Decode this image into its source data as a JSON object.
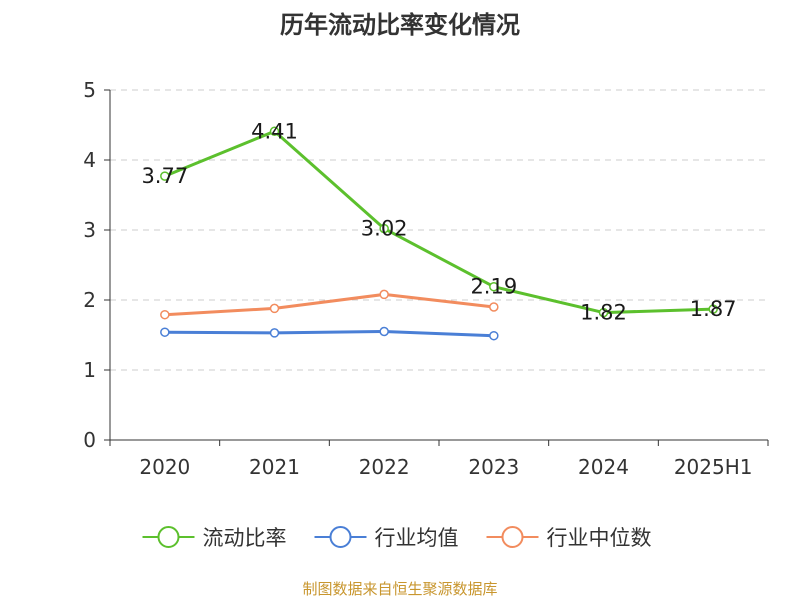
{
  "chart_data": {
    "type": "line",
    "title": "历年流动比率变化情况",
    "categories": [
      "2020",
      "2021",
      "2022",
      "2023",
      "2024",
      "2025H1"
    ],
    "ylim": [
      0,
      5
    ],
    "yticks": [
      "0",
      "1",
      "2",
      "3",
      "4",
      "5"
    ],
    "grid": true,
    "legend_position": "bottom",
    "series": [
      {
        "name": "流动比率",
        "color": "#5cc02d",
        "values": [
          3.77,
          4.41,
          3.02,
          2.19,
          1.82,
          1.87
        ],
        "labels": [
          "3.77",
          "4.41",
          "3.02",
          "2.19",
          "1.82",
          "1.87"
        ]
      },
      {
        "name": "行业均值",
        "color": "#4a7fd6",
        "values": [
          1.54,
          1.53,
          1.55,
          1.49,
          null,
          null
        ]
      },
      {
        "name": "行业中位数",
        "color": "#f28c5e",
        "values": [
          1.79,
          1.88,
          2.08,
          1.9,
          null,
          null
        ]
      }
    ],
    "source": "制图数据来自恒生聚源数据库"
  }
}
